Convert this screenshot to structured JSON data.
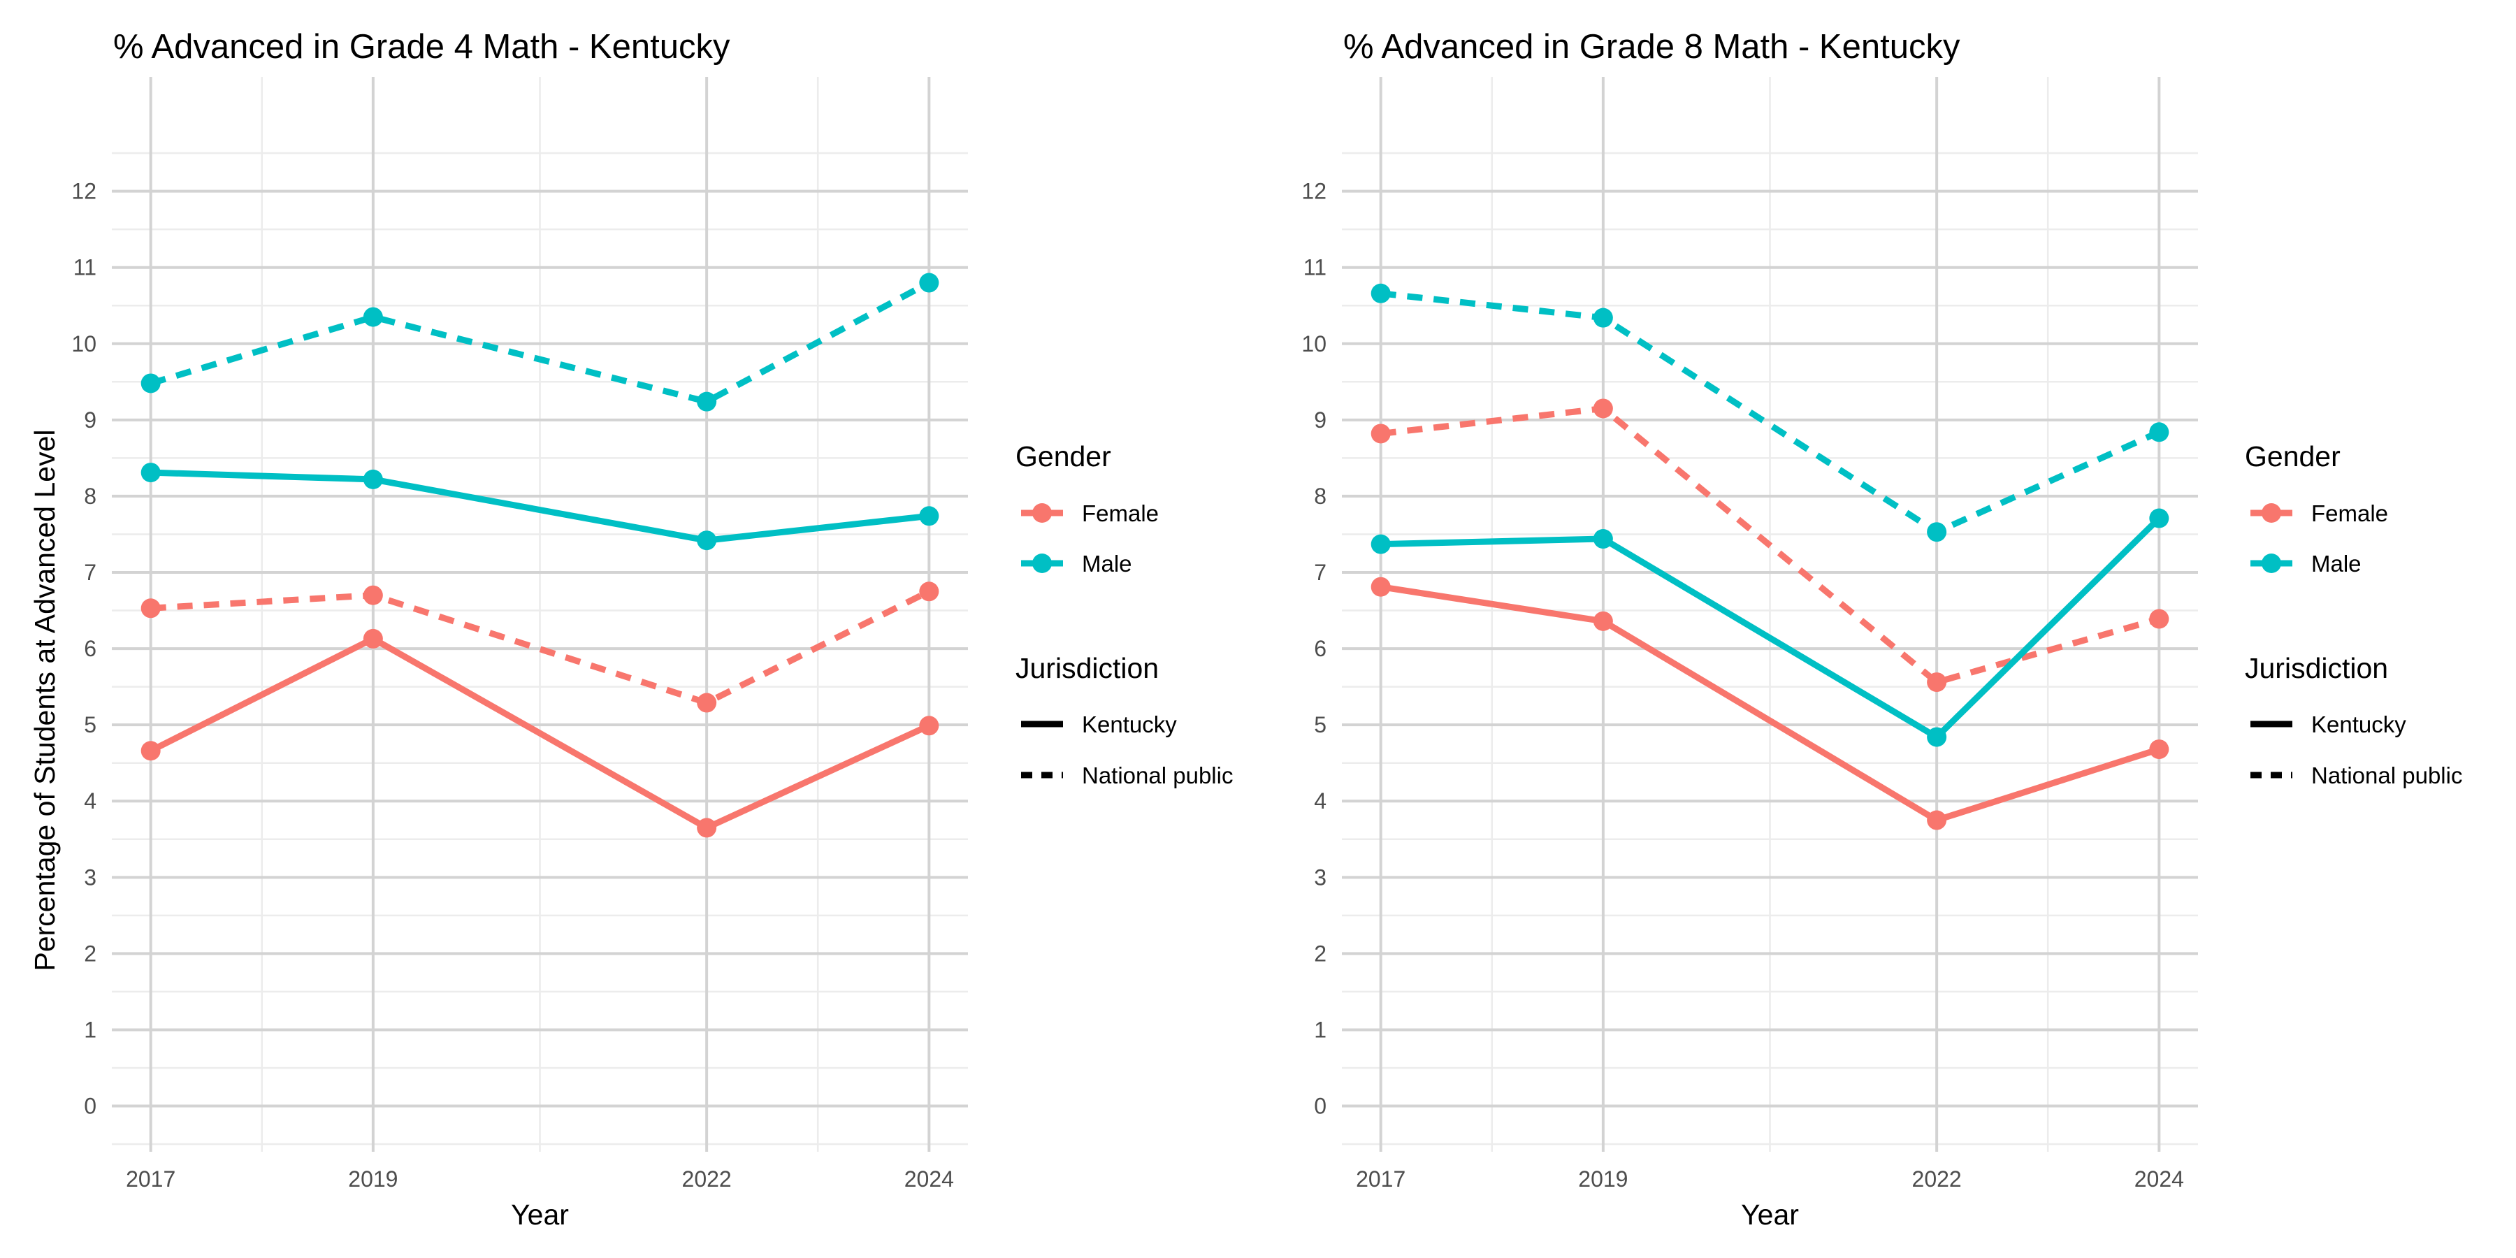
{
  "figure": {
    "y_axis_label": "Percentage of Students at Advanced Level"
  },
  "legend": {
    "gender_title": "Gender",
    "gender_items": [
      "Female",
      "Male"
    ],
    "jurisdiction_title": "Jurisdiction",
    "jurisdiction_items": [
      "Kentucky",
      "National public"
    ]
  },
  "colors": {
    "Female": "#F8766D",
    "Male": "#00BFC4",
    "grid_major": "#d3d3d3",
    "grid_minor": "#ececec"
  },
  "chart_data": [
    {
      "type": "line",
      "title": "% Advanced in Grade 4 Math - Kentucky",
      "xlabel": "Year",
      "ylabel": "Percentage of Students at Advanced Level",
      "x": [
        2017,
        2019,
        2022,
        2024
      ],
      "x_ticks": [
        "2017",
        "2019",
        "2022",
        "2024"
      ],
      "y_ticks": [
        0,
        1,
        2,
        3,
        4,
        5,
        6,
        7,
        8,
        9,
        10,
        11,
        12
      ],
      "xlim": [
        2016.65,
        2024.35
      ],
      "ylim": [
        -0.6,
        13.5
      ],
      "grid": true,
      "legend_position": "right",
      "series": [
        {
          "name": "Female",
          "gender": "Female",
          "jurisdiction": "Kentucky",
          "line": "solid",
          "values": [
            4.66,
            6.13,
            3.65,
            4.99
          ]
        },
        {
          "name": "Female",
          "gender": "Female",
          "jurisdiction": "National public",
          "line": "dashed",
          "values": [
            6.53,
            6.7,
            5.29,
            6.75
          ]
        },
        {
          "name": "Male",
          "gender": "Male",
          "jurisdiction": "Kentucky",
          "line": "solid",
          "values": [
            8.31,
            8.22,
            7.42,
            7.74
          ]
        },
        {
          "name": "Male",
          "gender": "Male",
          "jurisdiction": "National public",
          "line": "dashed",
          "values": [
            9.48,
            10.35,
            9.24,
            10.8
          ]
        }
      ]
    },
    {
      "type": "line",
      "title": "% Advanced in Grade 8 Math - Kentucky",
      "xlabel": "Year",
      "ylabel": "",
      "x": [
        2017,
        2019,
        2022,
        2024
      ],
      "x_ticks": [
        "2017",
        "2019",
        "2022",
        "2024"
      ],
      "y_ticks": [
        0,
        1,
        2,
        3,
        4,
        5,
        6,
        7,
        8,
        9,
        10,
        11,
        12
      ],
      "xlim": [
        2016.65,
        2024.35
      ],
      "ylim": [
        -0.6,
        13.5
      ],
      "grid": true,
      "legend_position": "right",
      "series": [
        {
          "name": "Female",
          "gender": "Female",
          "jurisdiction": "Kentucky",
          "line": "solid",
          "values": [
            6.81,
            6.36,
            3.75,
            4.68
          ]
        },
        {
          "name": "Female",
          "gender": "Female",
          "jurisdiction": "National public",
          "line": "dashed",
          "values": [
            8.82,
            9.15,
            5.56,
            6.39
          ]
        },
        {
          "name": "Male",
          "gender": "Male",
          "jurisdiction": "Kentucky",
          "line": "solid",
          "values": [
            7.37,
            7.44,
            4.84,
            7.71
          ]
        },
        {
          "name": "Male",
          "gender": "Male",
          "jurisdiction": "National public",
          "line": "dashed",
          "values": [
            10.66,
            10.34,
            7.53,
            8.84
          ]
        }
      ]
    }
  ]
}
